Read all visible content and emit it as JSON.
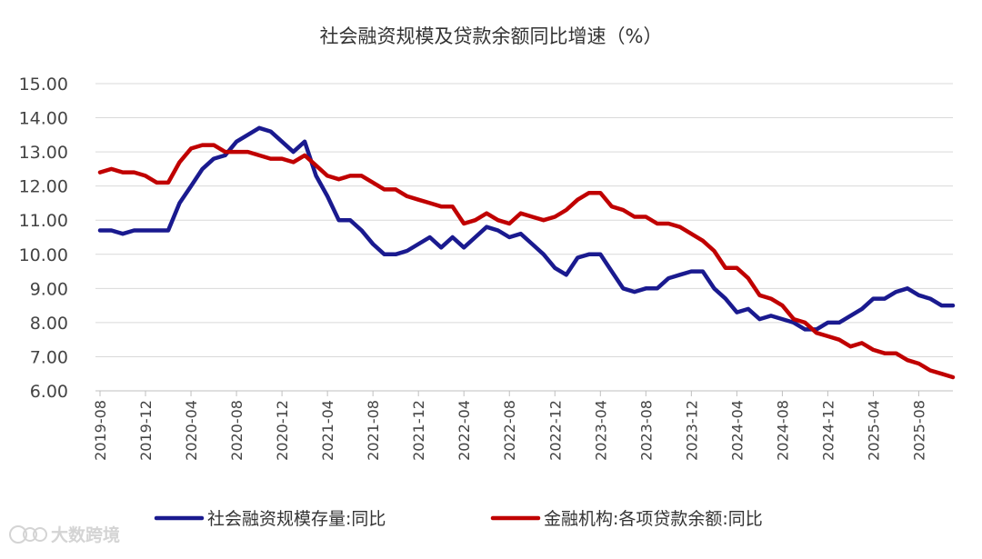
{
  "chart_data": {
    "type": "line",
    "title": "社会融资规模及贷款余额同比增速（%）",
    "xlabel": "",
    "ylabel": "",
    "ylim": [
      6,
      15
    ],
    "y_ticks": [
      "6.00",
      "7.00",
      "8.00",
      "9.00",
      "10.00",
      "11.00",
      "12.00",
      "13.00",
      "14.00",
      "15.00"
    ],
    "x_tick_labels": [
      "2019-08",
      "2019-12",
      "2020-04",
      "2020-08",
      "2020-12",
      "2021-04",
      "2021-08",
      "2021-12",
      "2022-04",
      "2022-08",
      "2022-12",
      "2023-04",
      "2023-08",
      "2023-12",
      "2024-04",
      "2024-08",
      "2024-12",
      "2025-04",
      "2025-08"
    ],
    "x": [
      "2019-08",
      "2019-09",
      "2019-10",
      "2019-11",
      "2019-12",
      "2020-01",
      "2020-02",
      "2020-03",
      "2020-04",
      "2020-05",
      "2020-06",
      "2020-07",
      "2020-08",
      "2020-09",
      "2020-10",
      "2020-11",
      "2020-12",
      "2021-01",
      "2021-02",
      "2021-03",
      "2021-04",
      "2021-05",
      "2021-06",
      "2021-07",
      "2021-08",
      "2021-09",
      "2021-10",
      "2021-11",
      "2021-12",
      "2022-01",
      "2022-02",
      "2022-03",
      "2022-04",
      "2022-05",
      "2022-06",
      "2022-07",
      "2022-08",
      "2022-09",
      "2022-10",
      "2022-11",
      "2022-12",
      "2023-01",
      "2023-02",
      "2023-03",
      "2023-04",
      "2023-05",
      "2023-06",
      "2023-07",
      "2023-08",
      "2023-09",
      "2023-10",
      "2023-11",
      "2023-12",
      "2024-01",
      "2024-02",
      "2024-03",
      "2024-04",
      "2024-05",
      "2024-06",
      "2024-07",
      "2024-08",
      "2024-09",
      "2024-10",
      "2024-11",
      "2024-12",
      "2025-01",
      "2025-02",
      "2025-03",
      "2025-04",
      "2025-05",
      "2025-06",
      "2025-07",
      "2025-08",
      "2025-09",
      "2025-10",
      "2025-11"
    ],
    "series": [
      {
        "name": "社会融资规模存量:同比",
        "color": "#1a1a8f",
        "values": [
          10.7,
          10.7,
          10.6,
          10.7,
          10.7,
          10.7,
          10.7,
          11.5,
          12.0,
          12.5,
          12.8,
          12.9,
          13.3,
          13.5,
          13.7,
          13.6,
          13.3,
          13.0,
          13.3,
          12.3,
          11.7,
          11.0,
          11.0,
          10.7,
          10.3,
          10.0,
          10.0,
          10.1,
          10.3,
          10.5,
          10.2,
          10.5,
          10.2,
          10.5,
          10.8,
          10.7,
          10.5,
          10.6,
          10.3,
          10.0,
          9.6,
          9.4,
          9.9,
          10.0,
          10.0,
          9.5,
          9.0,
          8.9,
          9.0,
          9.0,
          9.3,
          9.4,
          9.5,
          9.5,
          9.0,
          8.7,
          8.3,
          8.4,
          8.1,
          8.2,
          8.1,
          8.0,
          7.8,
          7.8,
          8.0,
          8.0,
          8.2,
          8.4,
          8.7,
          8.7,
          8.9,
          9.0,
          8.8,
          8.7,
          8.5,
          8.5
        ]
      },
      {
        "name": "金融机构:各项贷款余额:同比",
        "color": "#c00000",
        "values": [
          12.4,
          12.5,
          12.4,
          12.4,
          12.3,
          12.1,
          12.1,
          12.7,
          13.1,
          13.2,
          13.2,
          13.0,
          13.0,
          13.0,
          12.9,
          12.8,
          12.8,
          12.7,
          12.9,
          12.6,
          12.3,
          12.2,
          12.3,
          12.3,
          12.1,
          11.9,
          11.9,
          11.7,
          11.6,
          11.5,
          11.4,
          11.4,
          10.9,
          11.0,
          11.2,
          11.0,
          10.9,
          11.2,
          11.1,
          11.0,
          11.1,
          11.3,
          11.6,
          11.8,
          11.8,
          11.4,
          11.3,
          11.1,
          11.1,
          10.9,
          10.9,
          10.8,
          10.6,
          10.4,
          10.1,
          9.6,
          9.6,
          9.3,
          8.8,
          8.7,
          8.5,
          8.1,
          8.0,
          7.7,
          7.6,
          7.5,
          7.3,
          7.4,
          7.2,
          7.1,
          7.1,
          6.9,
          6.8,
          6.6,
          6.5,
          6.4
        ]
      }
    ],
    "legend_position": "bottom",
    "grid": true
  },
  "watermark": {
    "text": "大数跨境"
  }
}
